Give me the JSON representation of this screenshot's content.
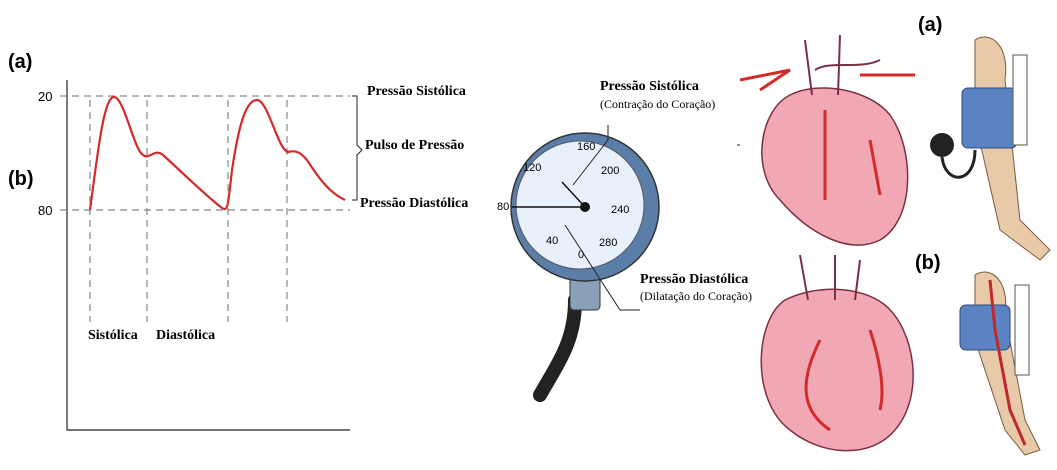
{
  "graph": {
    "panel_a": "(a)",
    "panel_b": "(b)",
    "tick_top": "20",
    "tick_bottom": "80",
    "systolic_pressure": "Pressão Sistólica",
    "pulse_pressure": "Pulso de Pressão",
    "diastolic_pressure": "Pressão Diastólica",
    "systole": "Sistólica",
    "diastole": "Diastólica"
  },
  "gauge": {
    "systolic_title": "Pressão Sistólica",
    "systolic_note": "(Contração do Coração)",
    "diastolic_title": "Pressão Diastólica",
    "diastolic_note": "(Dilatação do Coração)",
    "scale": [
      "0",
      "40",
      "80",
      "120",
      "160",
      "200",
      "240",
      "280"
    ]
  },
  "illustration": {
    "panel_a": "(a)",
    "panel_b": "(b)"
  }
}
